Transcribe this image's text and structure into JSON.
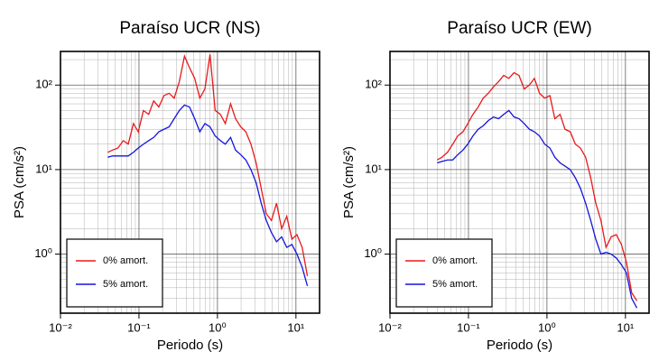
{
  "chart_data": [
    {
      "type": "line",
      "title": "Paraíso UCR (NS)",
      "x_label": "Periodo (s)",
      "y_label": "PSA (cm/s²)",
      "log_x": true,
      "log_y": true,
      "grid": true,
      "legend": "lower left",
      "xlim": [
        0.01,
        20
      ],
      "ylim": [
        0.2,
        250
      ],
      "xticks": [
        {
          "value": 0.01,
          "label": "10⁻²"
        },
        {
          "value": 0.1,
          "label": "10⁻¹"
        },
        {
          "value": 1,
          "label": "10⁰"
        },
        {
          "value": 10,
          "label": "10¹"
        }
      ],
      "yticks": [
        {
          "value": 1,
          "label": "10⁰"
        },
        {
          "value": 10,
          "label": "10¹"
        },
        {
          "value": 100,
          "label": "10²"
        }
      ],
      "x": [
        0.04,
        0.046,
        0.054,
        0.063,
        0.073,
        0.085,
        0.098,
        0.114,
        0.133,
        0.154,
        0.179,
        0.208,
        0.242,
        0.281,
        0.327,
        0.38,
        0.441,
        0.513,
        0.596,
        0.692,
        0.804,
        0.935,
        1.09,
        1.26,
        1.47,
        1.7,
        1.98,
        2.3,
        2.67,
        3.11,
        3.61,
        4.19,
        4.87,
        5.66,
        6.58,
        7.64,
        8.88,
        10.3,
        12.0,
        14.0
      ],
      "series": [
        {
          "name": "0% amort.",
          "color": "#e8191b",
          "values": [
            16,
            17,
            18,
            22,
            20,
            35,
            28,
            50,
            45,
            65,
            55,
            75,
            80,
            70,
            110,
            220,
            160,
            120,
            70,
            90,
            230,
            50,
            45,
            35,
            60,
            40,
            32,
            28,
            20,
            12,
            6,
            3,
            2.5,
            4,
            2,
            2.8,
            1.5,
            1.7,
            1.2,
            0.55
          ]
        },
        {
          "name": "5% amort.",
          "color": "#1414dc",
          "values": [
            14,
            14.5,
            14.5,
            14.5,
            14.5,
            16,
            18,
            20,
            22,
            24,
            28,
            30,
            32,
            40,
            50,
            58,
            55,
            40,
            28,
            35,
            32,
            25,
            22,
            20,
            24,
            17,
            15,
            13,
            10,
            7,
            4,
            2.5,
            1.8,
            1.4,
            1.6,
            1.2,
            1.3,
            1.0,
            0.7,
            0.42
          ]
        }
      ]
    },
    {
      "type": "line",
      "title": "Paraíso UCR (EW)",
      "x_label": "Periodo (s)",
      "y_label": "PSA (cm/s²)",
      "log_x": true,
      "log_y": true,
      "grid": true,
      "legend": "lower left",
      "xlim": [
        0.01,
        20
      ],
      "ylim": [
        0.2,
        250
      ],
      "xticks": [
        {
          "value": 0.01,
          "label": "10⁻²"
        },
        {
          "value": 0.1,
          "label": "10⁻¹"
        },
        {
          "value": 1,
          "label": "10⁰"
        },
        {
          "value": 10,
          "label": "10¹"
        }
      ],
      "yticks": [
        {
          "value": 1,
          "label": "10⁰"
        },
        {
          "value": 10,
          "label": "10¹"
        },
        {
          "value": 100,
          "label": "10²"
        }
      ],
      "x": [
        0.04,
        0.046,
        0.054,
        0.063,
        0.073,
        0.085,
        0.098,
        0.114,
        0.133,
        0.154,
        0.179,
        0.208,
        0.242,
        0.281,
        0.327,
        0.38,
        0.441,
        0.513,
        0.596,
        0.692,
        0.804,
        0.935,
        1.09,
        1.26,
        1.47,
        1.7,
        1.98,
        2.3,
        2.67,
        3.11,
        3.61,
        4.19,
        4.87,
        5.66,
        6.58,
        7.64,
        8.88,
        10.3,
        12.0,
        14.0
      ],
      "series": [
        {
          "name": "0% amort.",
          "color": "#e8191b",
          "values": [
            13,
            14,
            16,
            20,
            25,
            28,
            35,
            45,
            55,
            70,
            80,
            95,
            110,
            130,
            120,
            140,
            130,
            90,
            100,
            120,
            80,
            70,
            75,
            40,
            45,
            30,
            28,
            20,
            18,
            14,
            8,
            4,
            2.5,
            1.2,
            1.6,
            1.7,
            1.3,
            0.8,
            0.35,
            0.28
          ]
        },
        {
          "name": "5% amort.",
          "color": "#1414dc",
          "values": [
            12,
            12.5,
            13,
            13,
            15,
            17,
            20,
            25,
            30,
            33,
            38,
            42,
            40,
            45,
            50,
            42,
            40,
            35,
            30,
            28,
            25,
            20,
            18,
            14,
            12,
            11,
            10,
            8,
            6,
            4,
            2.5,
            1.5,
            1.0,
            1.05,
            1.0,
            0.9,
            0.75,
            0.6,
            0.3,
            0.23
          ]
        }
      ]
    }
  ]
}
